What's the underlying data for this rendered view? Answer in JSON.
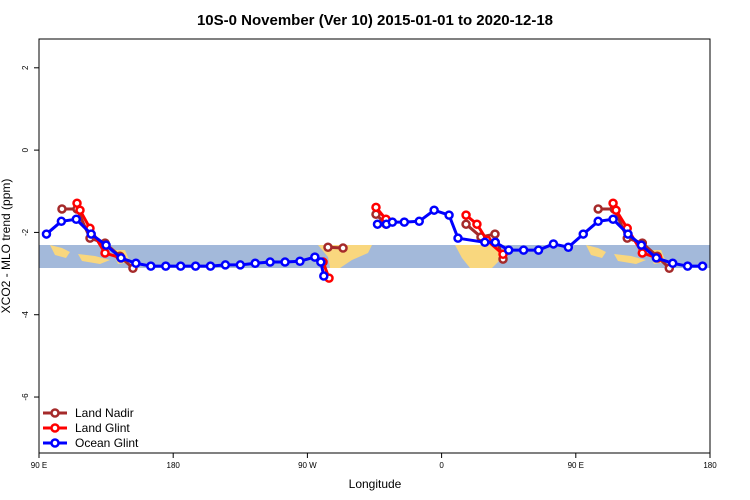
{
  "chart_data": {
    "type": "line",
    "title": "10S-0 November (Ver 10)   2015-01-01 to 2020-12-18",
    "x_label": "Longitude",
    "y_label": "XCO2 - MLO trend (ppm)",
    "xlim": [
      90,
      540
    ],
    "xticks": [
      {
        "value": 90,
        "label": "90 E"
      },
      180,
      {
        "value": 270,
        "label": "90 W"
      },
      {
        "value": 360,
        "label": "0"
      },
      {
        "value": 450,
        "label": "90 E"
      },
      {
        "value": 540,
        "label": "180"
      }
    ],
    "ylim": [
      -7.36,
      2.7
    ],
    "yticks": [
      -6,
      -4,
      -2,
      0,
      2
    ],
    "legend": "bottom-left",
    "series": [
      {
        "name": "Land Nadir",
        "color": "#a52a2a",
        "x": [
          105.4,
          115.5,
          124.2,
          134.3,
          144.3,
          153,
          null,
          283.8,
          293.9,
          null,
          316,
          322.7,
          null,
          376.4,
          386.4,
          395.8,
          401.2,
          null,
          465,
          475.8,
          484.5,
          494.6,
          504.6,
          512.7
        ],
        "values": [
          -1.43,
          -1.43,
          -2.14,
          -2.26,
          -2.58,
          -2.87,
          null,
          -2.36,
          -2.38,
          null,
          -1.56,
          -1.8,
          null,
          -1.8,
          -2.11,
          -2.04,
          -2.65,
          null,
          -1.43,
          -1.43,
          -2.14,
          -2.26,
          -2.58,
          -2.87
        ]
      },
      {
        "name": "Land Glint",
        "color": "#ff0000",
        "x": [
          115.5,
          117.5,
          124.2,
          134.3,
          145,
          null,
          280.5,
          284.5,
          null,
          316,
          322.7,
          null,
          376.4,
          383.7,
          390.4,
          401.2,
          null,
          475,
          477,
          484.5,
          494.6,
          505
        ],
        "values": [
          -1.29,
          -1.46,
          -1.9,
          -2.5,
          -2.62,
          null,
          -2.72,
          -3.11,
          null,
          -1.39,
          -1.68,
          null,
          -1.58,
          -1.8,
          -2.19,
          -2.53,
          null,
          -1.29,
          -1.46,
          -1.9,
          -2.5,
          -2.62
        ]
      },
      {
        "name": "Ocean Glint",
        "color": "#0000ff",
        "x": [
          95,
          105,
          115,
          125,
          135,
          145,
          155,
          165,
          175,
          185,
          195,
          205,
          215,
          225,
          235,
          245,
          255,
          265,
          275,
          279,
          281,
          null,
          317,
          323,
          327,
          335,
          345,
          355,
          365,
          371,
          389,
          396,
          405,
          415,
          425,
          435,
          445,
          455,
          465,
          475,
          485,
          494,
          504,
          515,
          525,
          535
        ],
        "values": [
          -2.04,
          -1.73,
          -1.68,
          -2.04,
          -2.31,
          -2.62,
          -2.75,
          -2.82,
          -2.82,
          -2.82,
          -2.82,
          -2.82,
          -2.79,
          -2.79,
          -2.75,
          -2.72,
          -2.72,
          -2.7,
          -2.6,
          -2.72,
          -3.06,
          null,
          -1.8,
          -1.8,
          -1.75,
          -1.75,
          -1.73,
          -1.46,
          -1.58,
          -2.14,
          -2.24,
          -2.24,
          -2.43,
          -2.43,
          -2.43,
          -2.28,
          -2.36,
          -2.04,
          -1.73,
          -1.68,
          -2.04,
          -2.31,
          -2.62,
          -2.75,
          -2.82,
          -2.82
        ]
      }
    ]
  }
}
